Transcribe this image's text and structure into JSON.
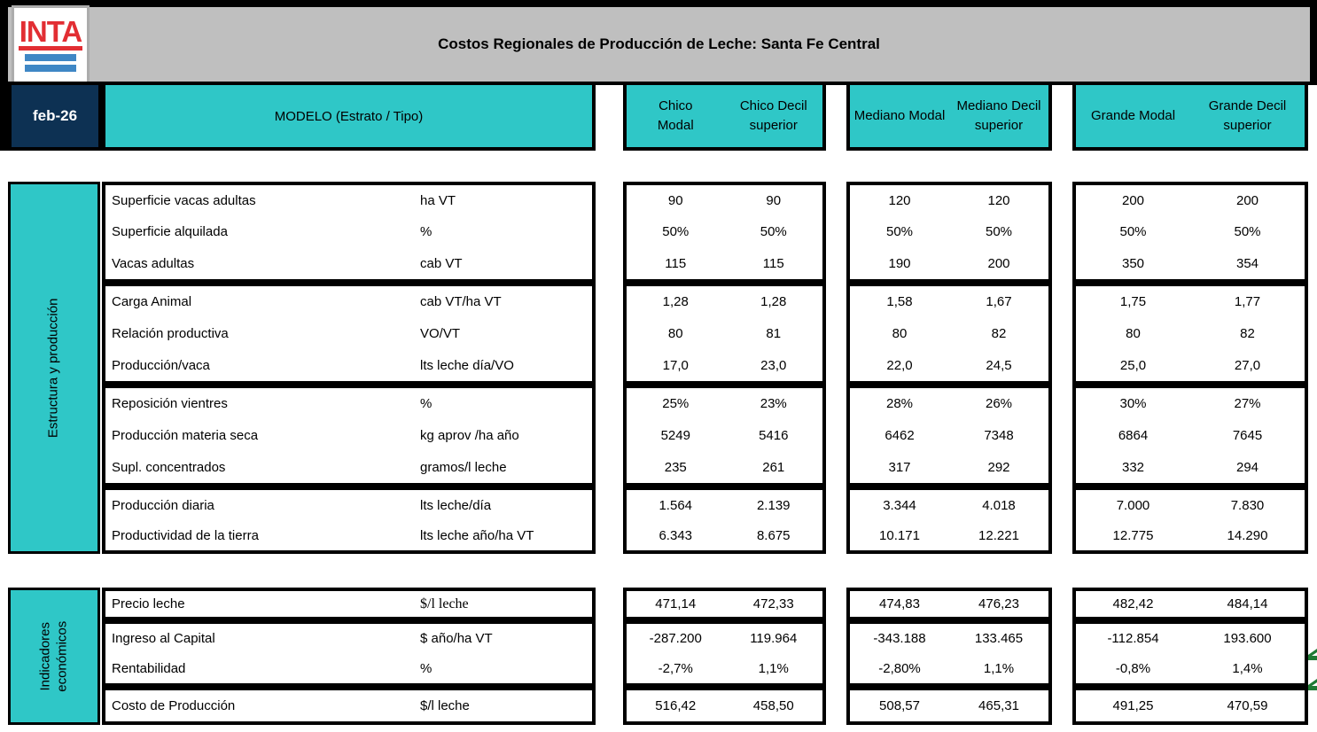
{
  "header": {
    "logo_text": "INTA",
    "title": "Costos Regionales de Producción de Leche: Santa Fe Central",
    "date_label": "feb-26",
    "model_label": "MODELO (Estrato / Tipo)",
    "columns": [
      "Chico\nModal",
      "Chico Decil\nsuperior",
      "Mediano Modal",
      "Mediano Decil\nsuperior",
      "Grande Modal",
      "Grande Decil\nsuperior"
    ]
  },
  "colors": {
    "teal": "#2FC7C7",
    "navy": "#0D3153",
    "gray_bar": "#BFBFBF",
    "logo_red": "#E22E33",
    "logo_blue": "#3F87C5",
    "arrow_green": "#1F7A33"
  },
  "sections": [
    {
      "sidebar": "Estructura y producción",
      "groups": [
        {
          "rows": [
            {
              "label": "Superficie vacas adultas",
              "unit": "ha VT",
              "values": [
                "90",
                "90",
                "120",
                "120",
                "200",
                "200"
              ]
            },
            {
              "label": "Superficie alquilada",
              "unit": "%",
              "values": [
                "50%",
                "50%",
                "50%",
                "50%",
                "50%",
                "50%"
              ]
            },
            {
              "label": "Vacas adultas",
              "unit": "cab VT",
              "values": [
                "115",
                "115",
                "190",
                "200",
                "350",
                "354"
              ]
            }
          ]
        },
        {
          "rows": [
            {
              "label": "Carga Animal",
              "unit": "cab VT/ha VT",
              "values": [
                "1,28",
                "1,28",
                "1,58",
                "1,67",
                "1,75",
                "1,77"
              ]
            },
            {
              "label": "Relación productiva",
              "unit": "VO/VT",
              "values": [
                "80",
                "81",
                "80",
                "82",
                "80",
                "82"
              ]
            },
            {
              "label": "Producción/vaca",
              "unit": "lts leche día/VO",
              "values": [
                "17,0",
                "23,0",
                "22,0",
                "24,5",
                "25,0",
                "27,0"
              ]
            }
          ]
        },
        {
          "rows": [
            {
              "label": "Reposición vientres",
              "unit": "%",
              "values": [
                "25%",
                "23%",
                "28%",
                "26%",
                "30%",
                "27%"
              ]
            },
            {
              "label": "Producción materia seca",
              "unit": "kg aprov /ha año",
              "values": [
                "5249",
                "5416",
                "6462",
                "7348",
                "6864",
                "7645"
              ]
            },
            {
              "label": "Supl. concentrados",
              "unit": "gramos/l leche",
              "values": [
                "235",
                "261",
                "317",
                "292",
                "332",
                "294"
              ]
            }
          ]
        },
        {
          "rows": [
            {
              "label": "Producción diaria",
              "unit": "lts leche/día",
              "values": [
                "1.564",
                "2.139",
                "3.344",
                "4.018",
                "7.000",
                "7.830"
              ]
            },
            {
              "label": "Productividad de la tierra",
              "unit": "lts leche año/ha VT",
              "values": [
                "6.343",
                "8.675",
                "10.171",
                "12.221",
                "12.775",
                "14.290"
              ]
            }
          ]
        }
      ]
    },
    {
      "sidebar": "Indicadores\neconómicos",
      "groups": [
        {
          "rows": [
            {
              "label": "Precio leche",
              "unit": "$/l leche",
              "unit_serif": true,
              "values": [
                "471,14",
                "472,33",
                "474,83",
                "476,23",
                "482,42",
                "484,14"
              ]
            }
          ]
        },
        {
          "rows": [
            {
              "label": "Ingreso al Capital",
              "unit": "$ año/ha VT",
              "values": [
                "-287.200",
                "119.964",
                "-343.188",
                "133.465",
                "-112.854",
                "193.600"
              ]
            },
            {
              "label": "Rentabilidad",
              "unit": "%",
              "values": [
                "-2,7%",
                "1,1%",
                "-2,80%",
                "1,1%",
                "-0,8%",
                "1,4%"
              ]
            }
          ]
        },
        {
          "rows": [
            {
              "label": "Costo de Producción",
              "unit": "$/l leche",
              "values": [
                "516,42",
                "458,50",
                "508,57",
                "465,31",
                "491,25",
                "470,59"
              ]
            }
          ]
        }
      ]
    }
  ]
}
